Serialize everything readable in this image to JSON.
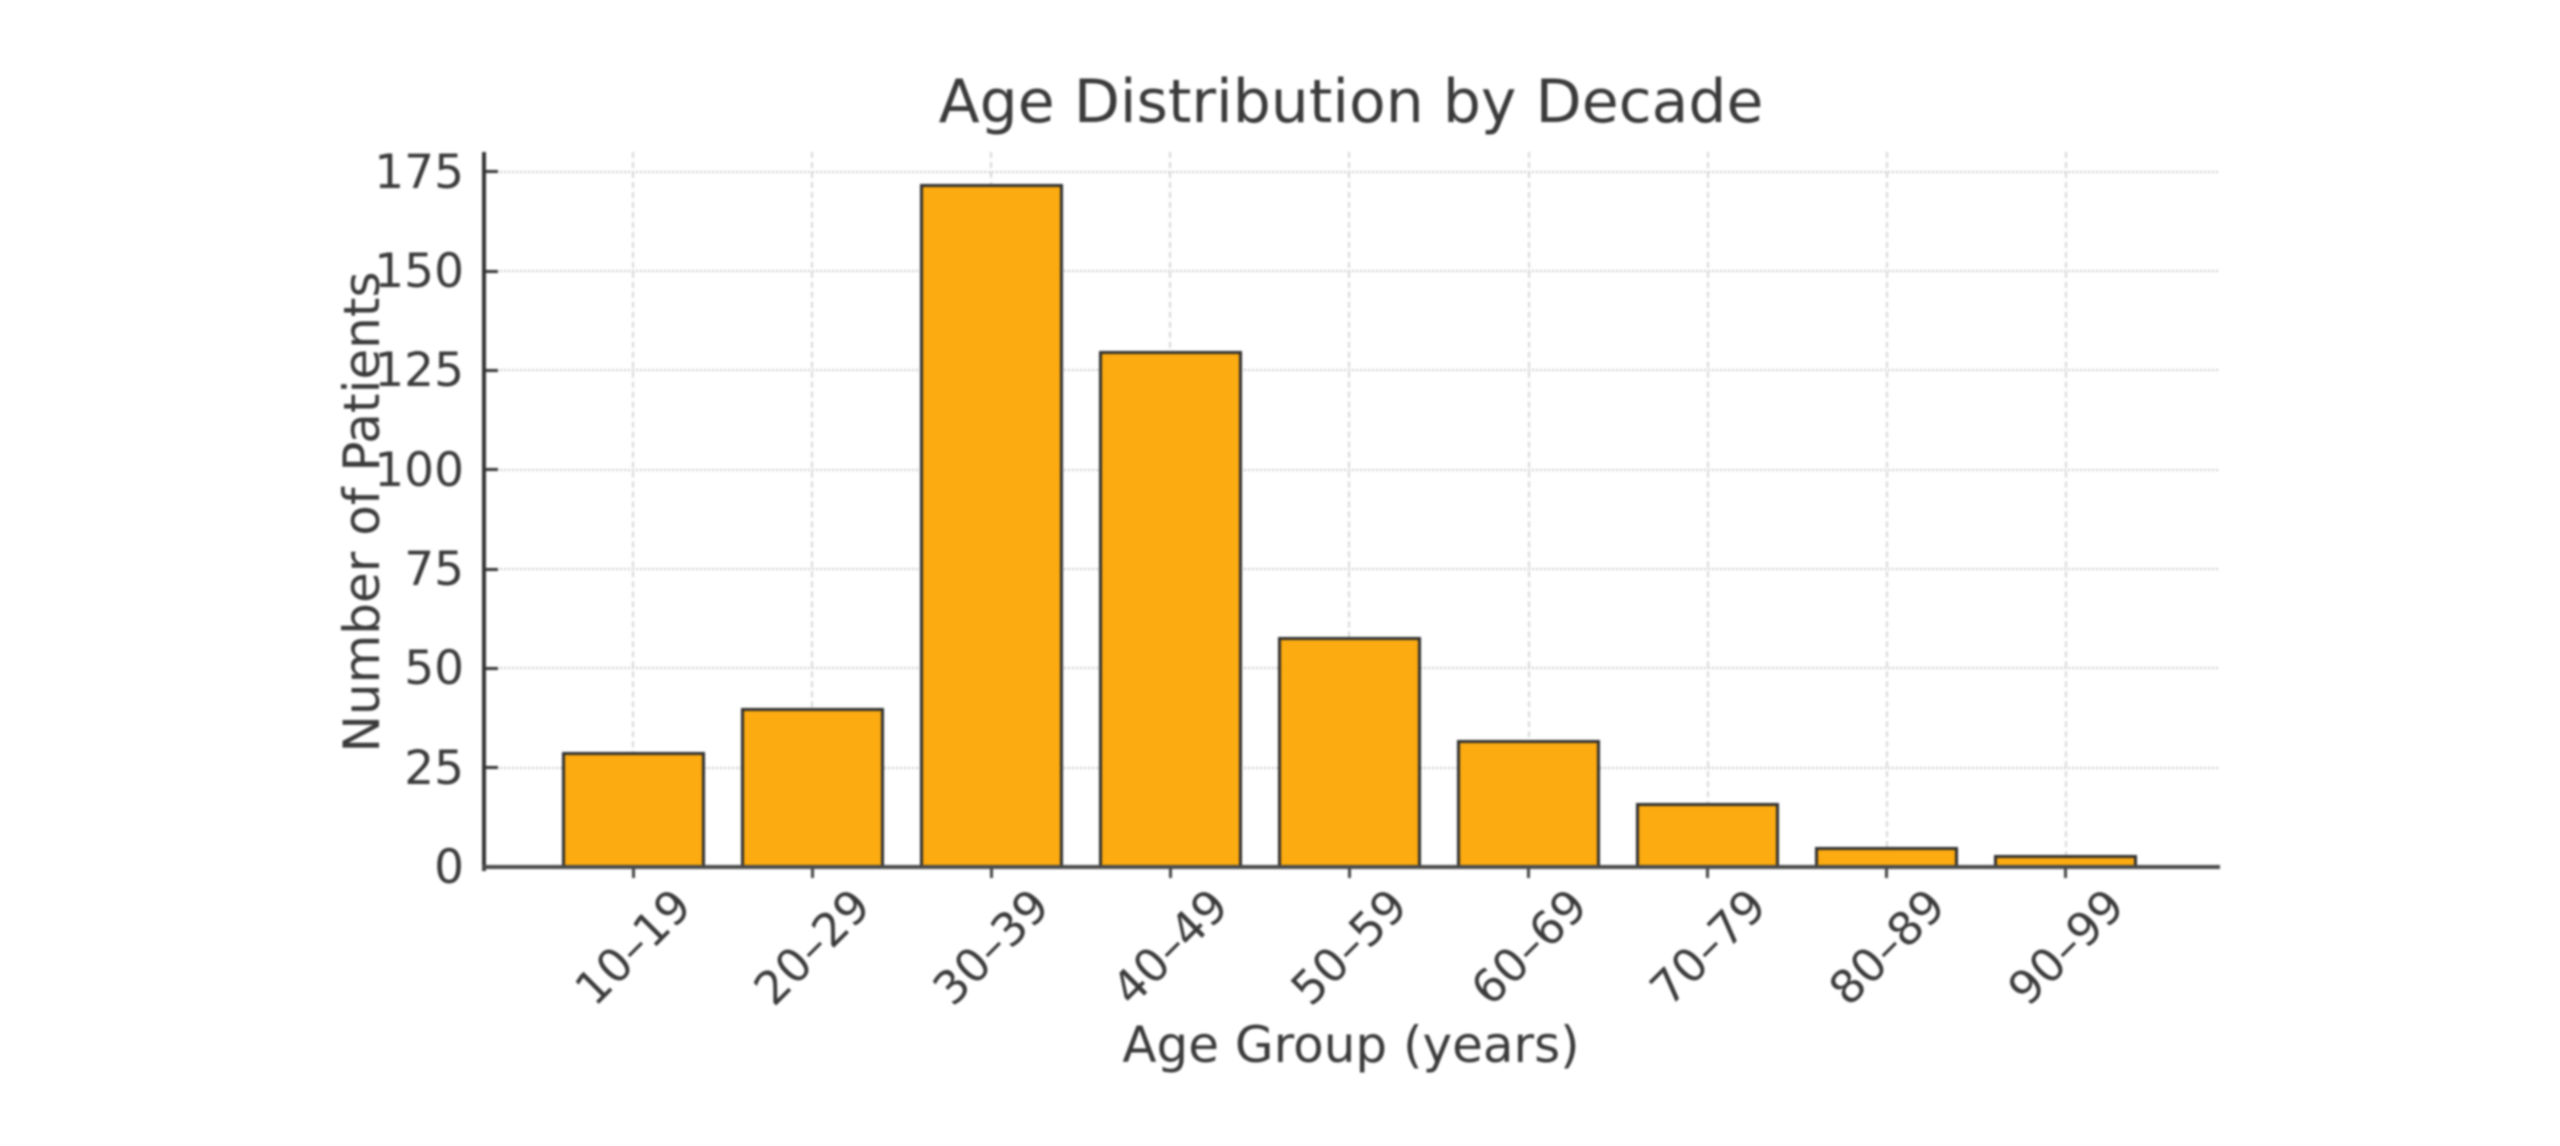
{
  "chart_data": {
    "type": "bar",
    "title": "Age Distribution by Decade",
    "xlabel": "Age Group (years)",
    "ylabel": "Number of Patients",
    "categories": [
      "10–19",
      "20–29",
      "30–39",
      "40–49",
      "50–59",
      "60–69",
      "70–79",
      "80–89",
      "90–99"
    ],
    "values": [
      29,
      40,
      172,
      130,
      58,
      32,
      16,
      5,
      3
    ],
    "ylim": [
      0,
      180
    ],
    "yticks": [
      0,
      25,
      50,
      75,
      100,
      125,
      150,
      175
    ],
    "grid": true,
    "legend_position": "none",
    "bar_color": "#fcab10",
    "bar_edge_color": "#2e2e2e",
    "text_color": "#3a3a3a",
    "hgrid_color": "#c9c9c9",
    "vgrid_color": "#d6d6d6",
    "background_color": "#ffffff"
  }
}
